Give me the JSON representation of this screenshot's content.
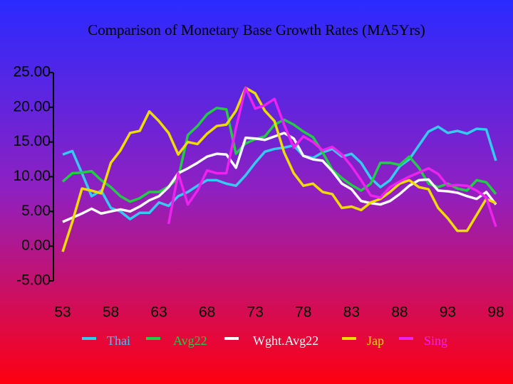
{
  "chart_data": {
    "type": "line",
    "title": "Comparison of Monetary Base Growth Rates (MA5Yrs)",
    "x": [
      53,
      54,
      55,
      56,
      57,
      58,
      59,
      60,
      61,
      62,
      63,
      64,
      65,
      66,
      67,
      68,
      69,
      70,
      71,
      72,
      73,
      74,
      75,
      76,
      77,
      78,
      79,
      80,
      81,
      82,
      83,
      84,
      85,
      86,
      87,
      88,
      89,
      90,
      91,
      92,
      93,
      94,
      95,
      96,
      97,
      98
    ],
    "xlim": [
      53,
      98
    ],
    "xticks": [
      53,
      58,
      63,
      68,
      73,
      78,
      83,
      88,
      93,
      98
    ],
    "ylim": [
      -5,
      25
    ],
    "yticks": [
      {
        "value": -5,
        "label": "-5.00"
      },
      {
        "value": 0,
        "label": "0.00"
      },
      {
        "value": 5,
        "label": "5.00"
      },
      {
        "value": 10,
        "label": "10.00"
      },
      {
        "value": 15,
        "label": "15.00"
      },
      {
        "value": 20,
        "label": "20.00"
      },
      {
        "value": 25,
        "label": "25.00"
      }
    ],
    "grid": false,
    "legend": "bottom",
    "series": [
      {
        "name": "Thai",
        "color": "#33ccee",
        "values": [
          13.2,
          13.7,
          10.5,
          7.2,
          8.0,
          5.5,
          5.0,
          3.9,
          4.8,
          4.8,
          6.3,
          5.8,
          7.2,
          7.8,
          8.7,
          9.5,
          9.5,
          9.0,
          8.7,
          10.2,
          12.0,
          13.6,
          14.0,
          14.2,
          14.5,
          13.0,
          12.7,
          13.5,
          14.0,
          12.9,
          13.3,
          12.0,
          9.8,
          8.5,
          9.5,
          11.5,
          12.5,
          14.5,
          16.5,
          17.2,
          16.3,
          16.6,
          16.2,
          16.9,
          16.8,
          12.3
        ]
      },
      {
        "name": "Avg22",
        "color": "#22cc44",
        "values": [
          9.3,
          10.5,
          10.6,
          10.8,
          9.5,
          8.5,
          7.2,
          6.4,
          6.9,
          7.8,
          7.8,
          8.6,
          9.8,
          16.0,
          17.3,
          19.0,
          19.9,
          19.7,
          13.3,
          14.8,
          15.4,
          15.8,
          17.5,
          18.2,
          17.5,
          16.5,
          15.7,
          13.5,
          11.0,
          9.8,
          8.8,
          8.0,
          9.0,
          12.0,
          12.0,
          11.7,
          12.9,
          11.3,
          9.0,
          8.5,
          9.0,
          8.3,
          8.0,
          9.5,
          9.2,
          7.5
        ]
      },
      {
        "name": "Wght.Avg22",
        "color": "#ffffff",
        "values": [
          3.5,
          4.1,
          4.7,
          5.4,
          4.7,
          5.0,
          5.3,
          5.0,
          5.7,
          6.6,
          7.2,
          8.5,
          10.5,
          11.2,
          12.0,
          12.9,
          13.3,
          13.2,
          11.3,
          15.6,
          15.5,
          15.3,
          15.8,
          16.3,
          15.5,
          13.0,
          12.5,
          12.3,
          10.8,
          9.0,
          8.2,
          6.5,
          6.2,
          6.0,
          6.5,
          7.5,
          8.7,
          9.5,
          9.6,
          8.0,
          7.9,
          7.7,
          7.2,
          6.8,
          7.8,
          6.0
        ]
      },
      {
        "name": "Jap",
        "color": "#eedd00",
        "values": [
          -0.8,
          3.5,
          8.3,
          8.0,
          7.6,
          12.0,
          13.8,
          16.3,
          16.6,
          19.4,
          18.0,
          16.3,
          13.2,
          15.0,
          14.7,
          16.2,
          17.3,
          17.5,
          19.5,
          22.8,
          22.0,
          19.5,
          18.0,
          13.5,
          10.5,
          8.7,
          9.0,
          7.8,
          7.5,
          5.5,
          5.7,
          5.2,
          6.3,
          6.8,
          7.8,
          9.0,
          9.5,
          8.5,
          8.2,
          5.5,
          4.0,
          2.2,
          2.2,
          4.5,
          6.8,
          6.2
        ]
      },
      {
        "name": "Sing",
        "color": "#ee22ee",
        "values": [
          null,
          null,
          null,
          null,
          null,
          null,
          null,
          null,
          null,
          null,
          null,
          3.2,
          10.5,
          6.0,
          8.0,
          10.9,
          10.5,
          10.5,
          17.0,
          22.8,
          19.8,
          20.3,
          21.2,
          17.5,
          14.2,
          15.8,
          15.0,
          13.8,
          14.3,
          13.2,
          11.5,
          9.5,
          7.3,
          7.0,
          8.5,
          9.3,
          10.0,
          10.6,
          11.2,
          10.4,
          8.7,
          8.8,
          8.7,
          8.0,
          7.0,
          2.8
        ]
      }
    ]
  }
}
